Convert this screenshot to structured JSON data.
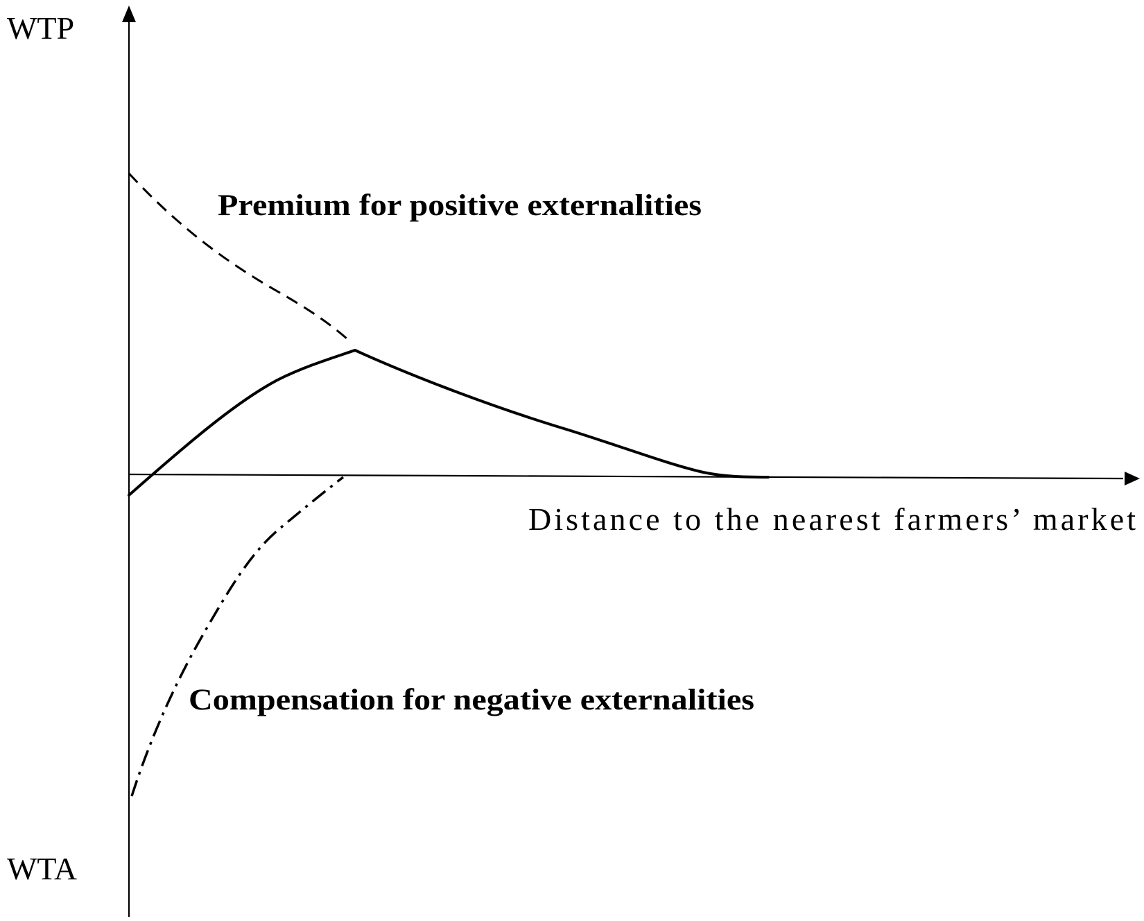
{
  "diagram": {
    "y_axis_top_label": "WTP",
    "y_axis_bottom_label": "WTA",
    "x_axis_label": "Distance to the nearest farmers’ market",
    "curves": [
      {
        "name": "premium",
        "label": "Premium for positive externalities",
        "style": "dashed"
      },
      {
        "name": "net",
        "label": "",
        "style": "solid"
      },
      {
        "name": "compensation",
        "label": "Compensation for negative externalities",
        "style": "dash-dot"
      }
    ]
  }
}
